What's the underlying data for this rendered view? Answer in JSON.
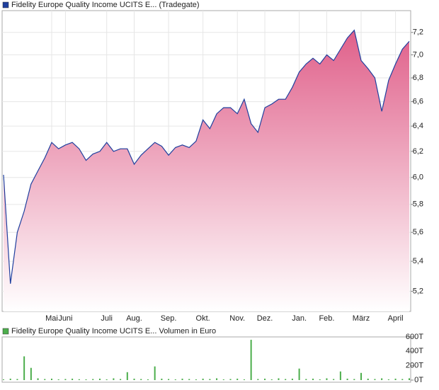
{
  "chart_data": [
    {
      "type": "area",
      "title": "Fidelity Europe Quality Income UCITS E... (Tradegate)",
      "color": "#1f3f9e",
      "fill_color": "#e0648e",
      "log_y": true,
      "grid": true,
      "categories": [
        null,
        null,
        null,
        null,
        null,
        null,
        null,
        "Mai",
        null,
        "Juni",
        null,
        null,
        null,
        null,
        null,
        "Juli",
        null,
        null,
        null,
        "Aug.",
        null,
        null,
        null,
        null,
        "Sep.",
        null,
        null,
        null,
        null,
        "Okt.",
        null,
        null,
        null,
        null,
        "Nov.",
        null,
        null,
        null,
        "Dez.",
        null,
        null,
        null,
        null,
        "Jan.",
        null,
        null,
        null,
        "Feb.",
        null,
        null,
        null,
        null,
        "März",
        null,
        null,
        null,
        null,
        "April",
        null,
        null
      ],
      "values": [
        6.02,
        5.25,
        5.6,
        5.75,
        5.95,
        6.05,
        6.15,
        6.27,
        6.22,
        6.25,
        6.27,
        6.22,
        6.13,
        6.18,
        6.2,
        6.27,
        6.2,
        6.22,
        6.22,
        6.1,
        6.17,
        6.22,
        6.27,
        6.24,
        6.17,
        6.23,
        6.25,
        6.23,
        6.28,
        6.45,
        6.38,
        6.5,
        6.55,
        6.55,
        6.5,
        6.62,
        6.42,
        6.35,
        6.55,
        6.58,
        6.62,
        6.62,
        6.72,
        6.85,
        6.92,
        6.97,
        6.92,
        7.0,
        6.95,
        7.05,
        7.15,
        7.22,
        6.95,
        6.88,
        6.8,
        6.52,
        6.78,
        6.92,
        7.05,
        7.12
      ],
      "ylim": [
        5.07,
        7.4
      ],
      "yticks": [
        {
          "value": 5.2,
          "label": "5,2"
        },
        {
          "value": 5.4,
          "label": "5,4"
        },
        {
          "value": 5.6,
          "label": "5,6"
        },
        {
          "value": 5.8,
          "label": "5,8"
        },
        {
          "value": 6.0,
          "label": "6,0"
        },
        {
          "value": 6.2,
          "label": "6,2"
        },
        {
          "value": 6.4,
          "label": "6,4"
        },
        {
          "value": 6.6,
          "label": "6,6"
        },
        {
          "value": 6.8,
          "label": "6,8"
        },
        {
          "value": 7.0,
          "label": "7,0"
        },
        {
          "value": 7.2,
          "label": "7,2"
        }
      ]
    },
    {
      "type": "bar",
      "title": "Fidelity Europe Quality Income UCITS E... Volumen in Euro",
      "color": "#4cae4c",
      "values": [
        10,
        20,
        15,
        330,
        170,
        25,
        15,
        20,
        10,
        15,
        20,
        12,
        10,
        15,
        20,
        10,
        25,
        15,
        110,
        20,
        15,
        10,
        190,
        20,
        15,
        10,
        20,
        15,
        10,
        20,
        15,
        25,
        10,
        15,
        20,
        10,
        560,
        15,
        20,
        10,
        25,
        15,
        20,
        160,
        15,
        20,
        10,
        25,
        15,
        120,
        20,
        15,
        100,
        20,
        15,
        25,
        10,
        20,
        15,
        25
      ],
      "ylim": [
        0,
        600
      ],
      "yticks": [
        {
          "value": 0,
          "label": "0T"
        },
        {
          "value": 200,
          "label": "200T"
        },
        {
          "value": 400,
          "label": "400T"
        },
        {
          "value": 600,
          "label": "600T"
        }
      ]
    }
  ]
}
